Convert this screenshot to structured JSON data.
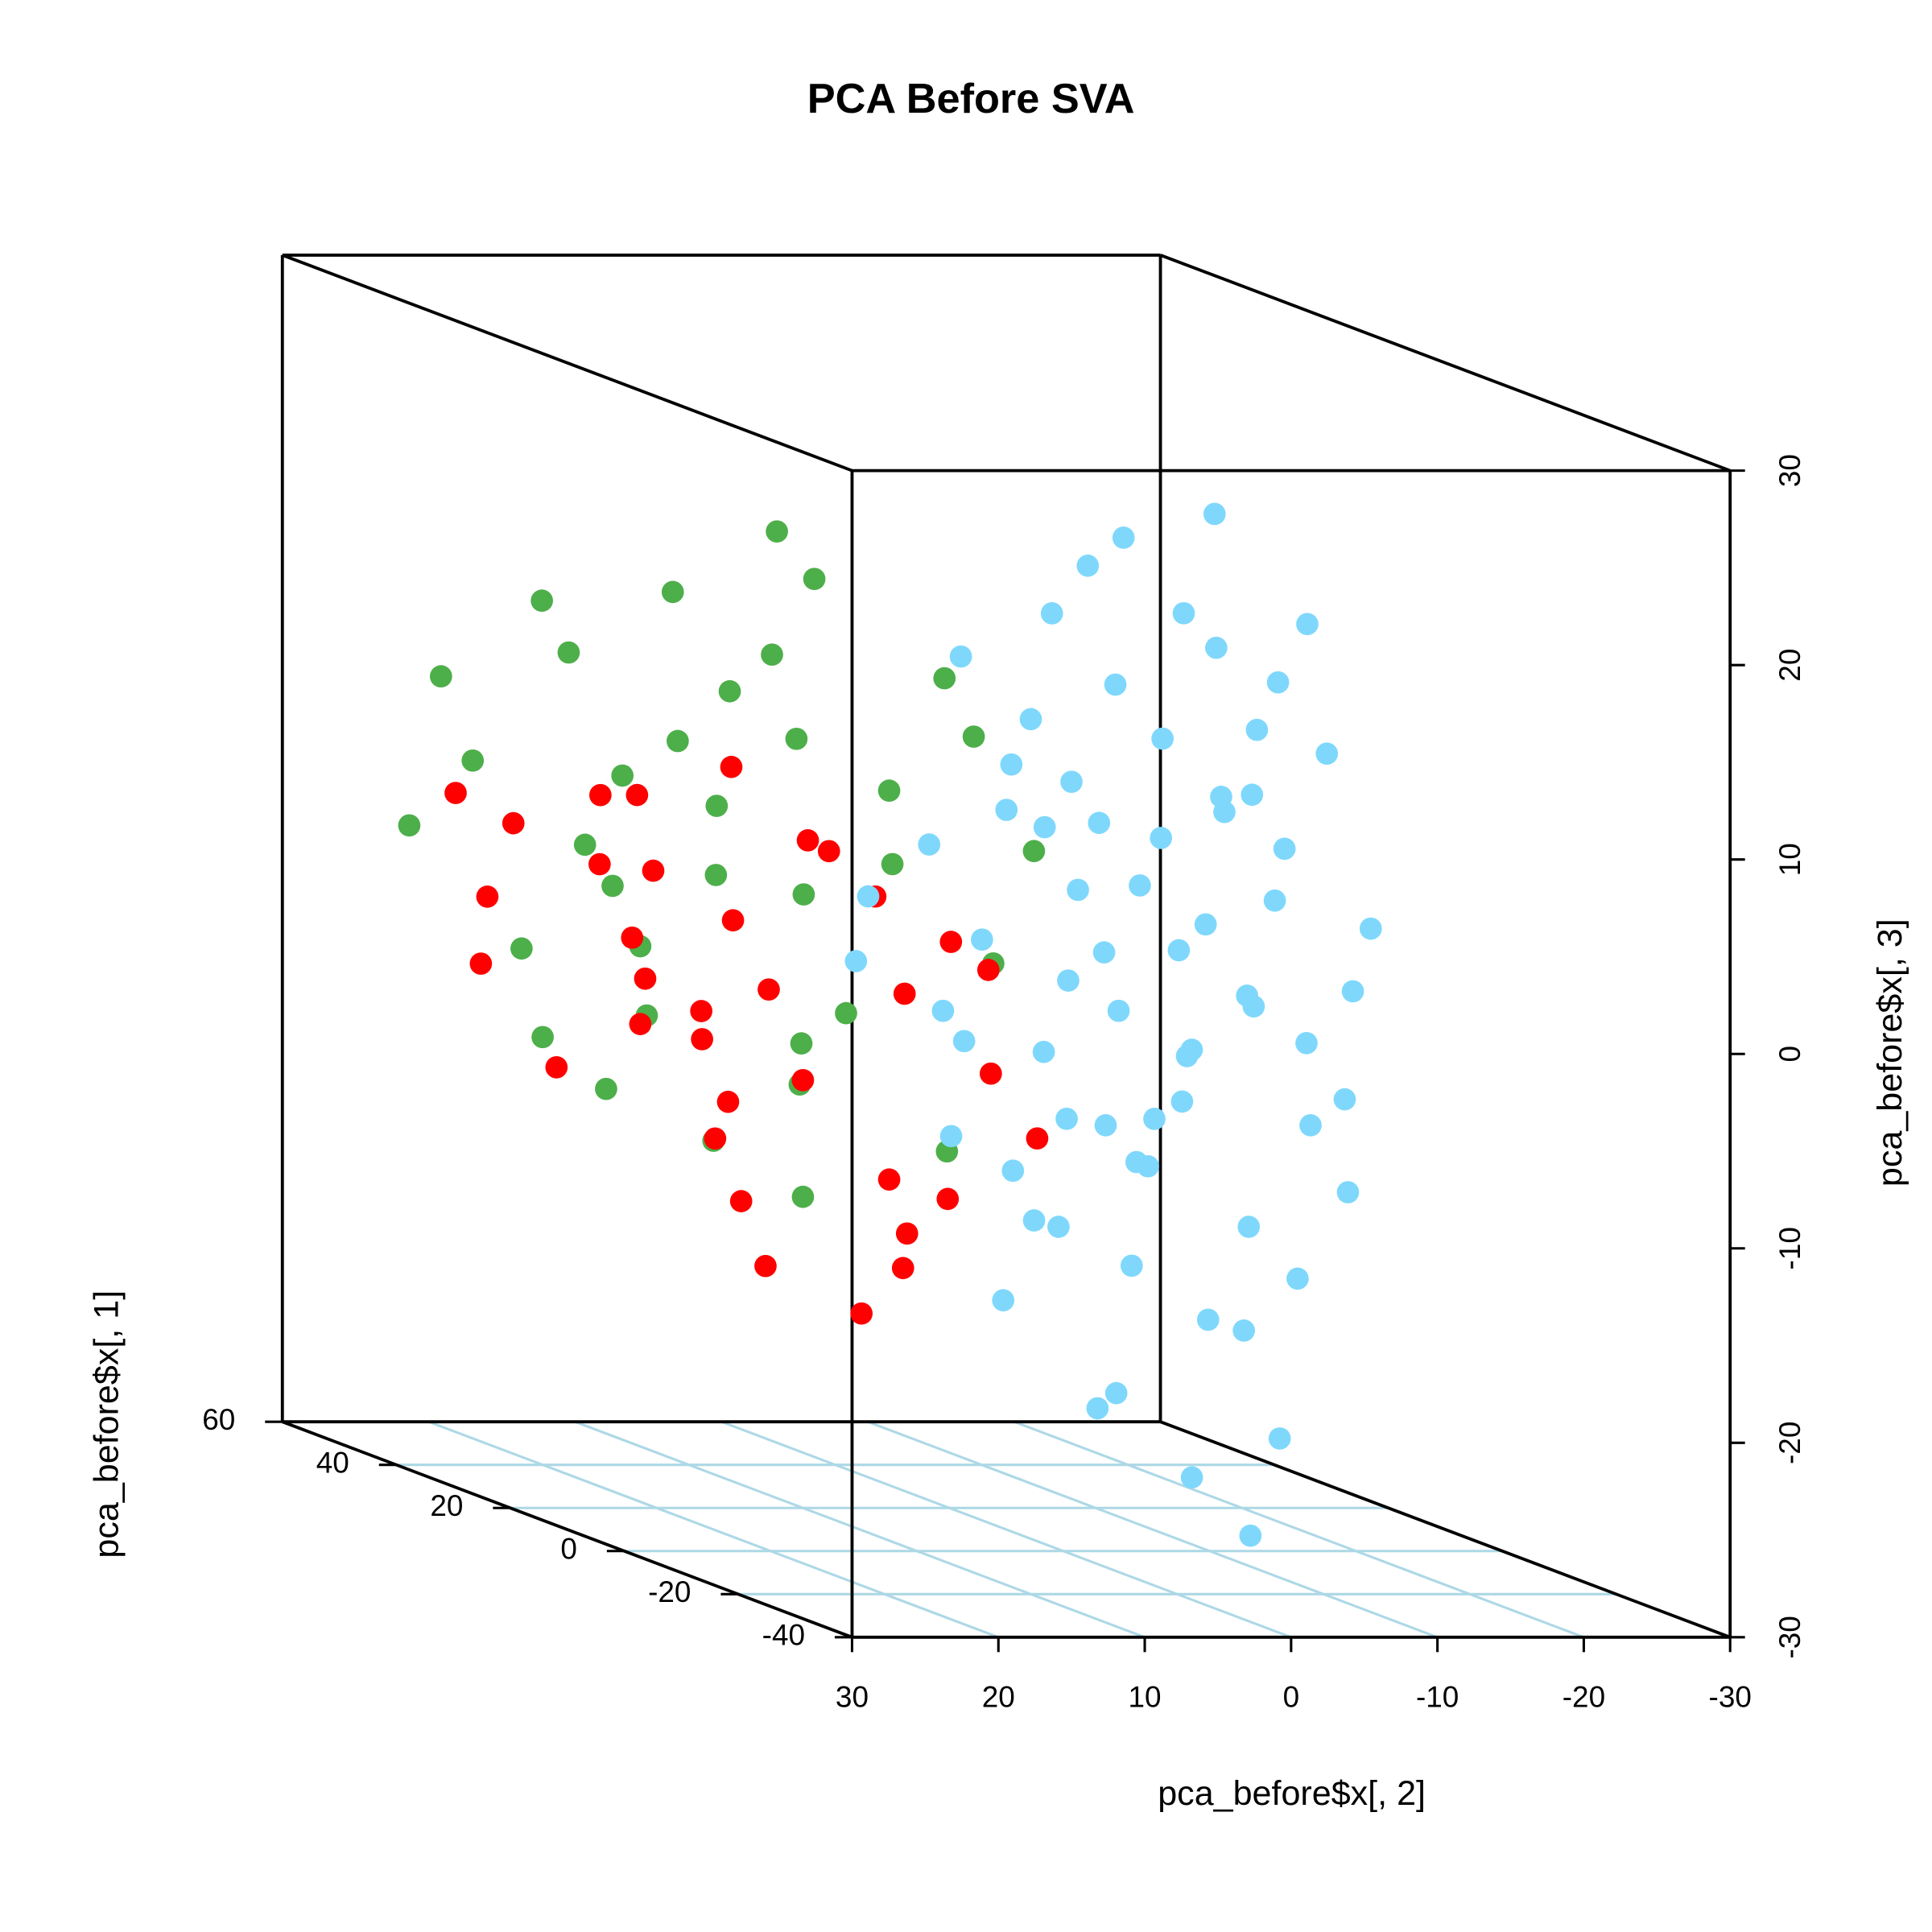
{
  "chart_data": {
    "type": "scatter3d",
    "title": "PCA Before SVA",
    "xlabel": "pca_before$x[, 2]",
    "ylabel": "pca_before$x[, 1]",
    "zlabel": "pca_before$x[, 3]",
    "xlim": [
      30,
      -30
    ],
    "xticks": [
      30,
      20,
      10,
      0,
      -10,
      -20,
      -30
    ],
    "ylim": [
      -40,
      60
    ],
    "yticks": [
      -40,
      -20,
      0,
      20,
      40,
      60
    ],
    "zlim": [
      -30,
      30
    ],
    "zticks": [
      -30,
      -20,
      -10,
      0,
      10,
      20,
      30
    ],
    "grid": true,
    "grid_color": "#add8e6",
    "series": [
      {
        "color": "#4daf4a",
        "x": [
          22,
          15,
          10,
          25,
          12,
          18,
          8,
          20,
          14,
          5,
          16,
          24,
          9,
          11,
          19,
          6,
          13,
          21,
          7,
          17,
          4,
          10,
          23,
          15,
          2,
          12,
          18,
          8,
          20,
          14,
          3,
          16,
          26,
          11,
          9
        ],
        "y": [
          35,
          20,
          18,
          45,
          30,
          28,
          10,
          40,
          25,
          8,
          32,
          42,
          15,
          22,
          38,
          5,
          28,
          30,
          12,
          24,
          2,
          20,
          36,
          30,
          0,
          16,
          34,
          25,
          26,
          10,
          8,
          38,
          48,
          18,
          28
        ],
        "z": [
          15,
          12,
          18,
          10,
          5,
          -2,
          8,
          -8,
          2,
          14,
          -6,
          6,
          -4,
          20,
          12,
          -10,
          -12,
          3,
          4,
          9,
          0,
          -14,
          -3,
          16,
          6,
          10,
          -10,
          1,
          7,
          -5,
          11,
          0,
          2,
          -8,
          13
        ]
      },
      {
        "color": "#ff0000",
        "x": [
          20,
          15,
          10,
          18,
          5,
          12,
          22,
          8,
          14,
          3,
          17,
          25,
          9,
          6,
          11,
          19,
          2,
          13,
          16,
          21,
          7,
          4,
          24,
          10,
          15,
          1,
          18,
          12,
          23,
          6,
          14,
          9,
          3,
          20,
          11
        ],
        "y": [
          30,
          25,
          20,
          35,
          15,
          28,
          40,
          10,
          22,
          5,
          32,
          38,
          18,
          12,
          24,
          26,
          8,
          30,
          20,
          35,
          15,
          10,
          45,
          26,
          18,
          2,
          28,
          14,
          42,
          20,
          36,
          5,
          12,
          22,
          30
        ],
        "z": [
          2,
          -5,
          -8,
          5,
          -3,
          -10,
          3,
          -12,
          0,
          -6,
          -2,
          -4,
          4,
          -15,
          -18,
          6,
          -1,
          -7,
          -11,
          -9,
          2,
          -13,
          4,
          -4,
          -14,
          -9,
          -6,
          5,
          -1,
          -20,
          1,
          -16,
          0,
          -3,
          7
        ]
      },
      {
        "color": "#7fd8fc",
        "x": [
          5,
          0,
          -3,
          10,
          8,
          2,
          -5,
          12,
          6,
          -1,
          15,
          3,
          -6,
          9,
          1,
          14,
          -2,
          7,
          11,
          4,
          -4,
          13,
          0,
          18,
          5,
          -7,
          8,
          2,
          16,
          -3,
          10,
          6,
          -1,
          12,
          3,
          -5,
          9,
          1,
          15,
          -2,
          7,
          4,
          11,
          -4,
          0,
          14,
          6,
          -6,
          8,
          2,
          17,
          -3,
          5,
          10,
          -7,
          3,
          13,
          1,
          9,
          -1,
          20,
          4,
          7,
          12,
          -5,
          0,
          16,
          6,
          2,
          -2
        ],
        "y": [
          -30,
          -25,
          -35,
          -20,
          -28,
          -32,
          -38,
          -22,
          -26,
          -30,
          -15,
          -36,
          -34,
          -24,
          -28,
          -18,
          -32,
          -30,
          -25,
          -20,
          -36,
          -16,
          -38,
          -12,
          -34,
          -32,
          -22,
          -26,
          -20,
          -30,
          -35,
          -18,
          -24,
          -30,
          -28,
          -26,
          -38,
          -20,
          -28,
          -36,
          -16,
          -32,
          -14,
          -22,
          -34,
          -26,
          -38,
          -28,
          -34,
          -18,
          -24,
          -24,
          -22,
          -30,
          -36,
          -14,
          -34,
          -36,
          -18,
          -20,
          -15,
          -38,
          -24,
          -38,
          -30,
          -16,
          -32,
          -12,
          -38,
          -28
        ],
        "z": [
          10,
          5,
          0,
          15,
          -5,
          20,
          3,
          -8,
          25,
          -10,
          8,
          12,
          -3,
          2,
          -15,
          18,
          7,
          -12,
          10,
          0,
          15,
          -2,
          -20,
          5,
          22,
          -8,
          12,
          -4,
          0,
          18,
          -18,
          6,
          26,
          -10,
          4,
          9,
          -6,
          14,
          -14,
          -12,
          20,
          -1,
          3,
          1,
          16,
          11,
          -22,
          -5,
          8,
          -8,
          -6,
          -16,
          17,
          24,
          6,
          9,
          -4,
          2,
          -11,
          -2,
          2,
          13,
          -20,
          5,
          21,
          -6,
          14,
          -3,
          -25,
          12
        ]
      }
    ]
  }
}
